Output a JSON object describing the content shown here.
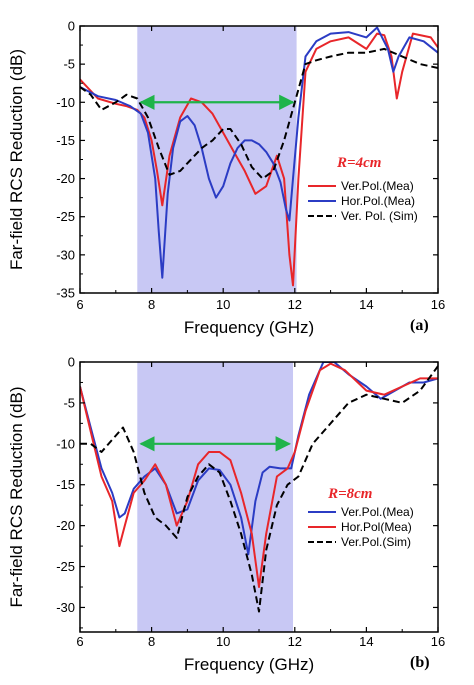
{
  "chart_data": [
    {
      "type": "line",
      "panel_label": "(a)",
      "xlabel": "Frequency (GHz)",
      "ylabel": "Far-field RCS Reduction (dB)",
      "xlim": [
        6,
        16
      ],
      "ylim": [
        -35,
        0
      ],
      "xticks": [
        6,
        8,
        10,
        12,
        14,
        16
      ],
      "yticks": [
        0,
        -5,
        -10,
        -15,
        -20,
        -25,
        -30,
        -35
      ],
      "shaded_band": [
        7.6,
        12.05
      ],
      "arrow": {
        "x1": 7.7,
        "x2": 11.95,
        "y": -10,
        "color": "#1fb44a"
      },
      "annotation": "R=4cm",
      "annotation_pos": {
        "x": 13.8,
        "y": -18.5
      },
      "legend": "right",
      "series": [
        {
          "name": "Ver.Pol.(Mea)",
          "color": "#e8262a",
          "dash": "solid",
          "x": [
            6,
            6.5,
            7,
            7.3,
            7.6,
            7.8,
            8,
            8.15,
            8.3,
            8.5,
            8.8,
            9.1,
            9.4,
            9.7,
            10,
            10.3,
            10.6,
            10.9,
            11.2,
            11.5,
            11.7,
            11.85,
            11.95,
            12.1,
            12.3,
            12.6,
            13,
            13.5,
            14,
            14.3,
            14.5,
            14.7,
            14.85,
            15,
            15.3,
            15.8,
            16
          ],
          "y": [
            -7,
            -9.5,
            -10.2,
            -10.5,
            -11,
            -12,
            -15,
            -19,
            -23.5,
            -17,
            -12,
            -9.5,
            -10,
            -11.5,
            -14,
            -16.5,
            -19,
            -22,
            -21,
            -17,
            -20,
            -30,
            -34,
            -20,
            -6,
            -3,
            -2,
            -1.5,
            -3,
            -1,
            -1.2,
            -4,
            -9.5,
            -6,
            -1,
            -1.5,
            -2.8
          ]
        },
        {
          "name": "Hor.Pol.(Mea)",
          "color": "#2b3cc4",
          "dash": "solid",
          "x": [
            6,
            6.5,
            7,
            7.4,
            7.7,
            7.9,
            8.1,
            8.2,
            8.3,
            8.45,
            8.6,
            8.8,
            9,
            9.2,
            9.4,
            9.6,
            9.8,
            10,
            10.2,
            10.4,
            10.6,
            10.8,
            11,
            11.2,
            11.4,
            11.6,
            11.75,
            11.85,
            11.95,
            12.1,
            12.3,
            12.6,
            13,
            13.5,
            14,
            14.3,
            14.6,
            14.75,
            14.9,
            15.2,
            15.6,
            16
          ],
          "y": [
            -8,
            -9.2,
            -9.7,
            -10.5,
            -11.5,
            -14,
            -20,
            -27,
            -33,
            -22,
            -16,
            -12.5,
            -11.8,
            -13,
            -16,
            -20,
            -22.5,
            -21,
            -18,
            -16,
            -15,
            -15,
            -15.5,
            -16.5,
            -18,
            -20.5,
            -24,
            -25.5,
            -20,
            -12,
            -4,
            -2,
            -1,
            -0.8,
            -1.5,
            -0.2,
            -3,
            -6,
            -4,
            -1.5,
            -2,
            -3.5
          ]
        },
        {
          "name": "Ver. Pol. (Sim)",
          "color": "#000000",
          "dash": "dashed",
          "x": [
            6,
            6.3,
            6.6,
            7,
            7.3,
            7.6,
            7.9,
            8.2,
            8.5,
            8.8,
            9.1,
            9.4,
            9.7,
            10,
            10.2,
            10.5,
            10.8,
            11.1,
            11.4,
            11.7,
            12,
            12.3,
            12.6,
            13,
            13.5,
            14,
            14.5,
            15,
            15.5,
            16
          ],
          "y": [
            -8,
            -9,
            -11,
            -10,
            -9,
            -9.5,
            -12,
            -16,
            -19.5,
            -19,
            -17.5,
            -16,
            -15,
            -13.5,
            -13.5,
            -15.5,
            -18.5,
            -20,
            -19,
            -15,
            -10,
            -5,
            -4.5,
            -4,
            -3.5,
            -3.5,
            -3,
            -4,
            -5,
            -5.5
          ]
        }
      ]
    },
    {
      "type": "line",
      "panel_label": "(b)",
      "xlabel": "Frequency (GHz)",
      "ylabel": "Far-field RCS Reduction (dB)",
      "xlim": [
        6,
        16
      ],
      "ylim": [
        -33,
        0
      ],
      "xticks": [
        6,
        8,
        10,
        12,
        14,
        16
      ],
      "yticks": [
        0,
        -5,
        -10,
        -15,
        -20,
        -25,
        -30
      ],
      "shaded_band": [
        7.6,
        11.95
      ],
      "arrow": {
        "x1": 7.7,
        "x2": 11.85,
        "y": -10,
        "color": "#1fb44a"
      },
      "annotation": "R=8cm",
      "annotation_pos": {
        "x": 13.55,
        "y": -16.6
      },
      "legend": "right",
      "series": [
        {
          "name": "Ver.Pol.(Mea)",
          "color": "#2b3cc4",
          "dash": "solid",
          "x": [
            6,
            6.3,
            6.6,
            6.9,
            7.1,
            7.25,
            7.5,
            7.8,
            8.1,
            8.4,
            8.7,
            9,
            9.3,
            9.6,
            9.9,
            10.2,
            10.5,
            10.7,
            10.9,
            11.1,
            11.3,
            11.6,
            11.9,
            12.1,
            12.4,
            12.8,
            13.1,
            13.5,
            14,
            14.4,
            14.8,
            15.2,
            15.6,
            16
          ],
          "y": [
            -3,
            -8,
            -13,
            -16,
            -19,
            -18.5,
            -15.5,
            -14,
            -13,
            -15,
            -18.5,
            -18,
            -14.5,
            -13,
            -13.2,
            -15,
            -19,
            -23.5,
            -17,
            -13.5,
            -12.8,
            -13,
            -13,
            -9,
            -4,
            0,
            0,
            -1.5,
            -3,
            -4.5,
            -3.5,
            -2.5,
            -2.5,
            -2
          ]
        },
        {
          "name": "Hor.Pol(Mea)",
          "color": "#e8262a",
          "dash": "solid",
          "x": [
            6,
            6.3,
            6.6,
            6.9,
            7.1,
            7.25,
            7.5,
            7.8,
            8.1,
            8.4,
            8.7,
            9,
            9.3,
            9.6,
            9.9,
            10.2,
            10.5,
            10.8,
            11,
            11.2,
            11.5,
            11.8,
            12,
            12.3,
            12.7,
            13,
            13.4,
            14,
            14.5,
            15,
            15.5,
            16
          ],
          "y": [
            -3,
            -8.5,
            -14,
            -17,
            -22.5,
            -20,
            -16,
            -14.5,
            -12.5,
            -15,
            -20,
            -17,
            -12.5,
            -11,
            -11,
            -12,
            -16,
            -21,
            -27.5,
            -21,
            -14,
            -13,
            -11,
            -6,
            -1,
            -0.2,
            -1,
            -3.5,
            -4,
            -3,
            -2,
            -2
          ]
        },
        {
          "name": "Ver.Pol.(Sim)",
          "color": "#000000",
          "dash": "dashed",
          "x": [
            6,
            6.3,
            6.6,
            6.9,
            7.2,
            7.5,
            7.8,
            8.1,
            8.4,
            8.7,
            9,
            9.3,
            9.6,
            9.9,
            10.2,
            10.5,
            10.8,
            11,
            11.2,
            11.5,
            11.8,
            12.1,
            12.5,
            13,
            13.5,
            14,
            14.5,
            15,
            15.5,
            16
          ],
          "y": [
            -10,
            -10,
            -11,
            -9.5,
            -8,
            -11,
            -16,
            -19,
            -20,
            -21.5,
            -16.5,
            -14,
            -12.5,
            -13.5,
            -17,
            -21,
            -26,
            -30.5,
            -23,
            -17.5,
            -15,
            -14,
            -10,
            -7.5,
            -5,
            -4,
            -4.5,
            -5,
            -3.5,
            -0.5
          ]
        }
      ]
    }
  ]
}
